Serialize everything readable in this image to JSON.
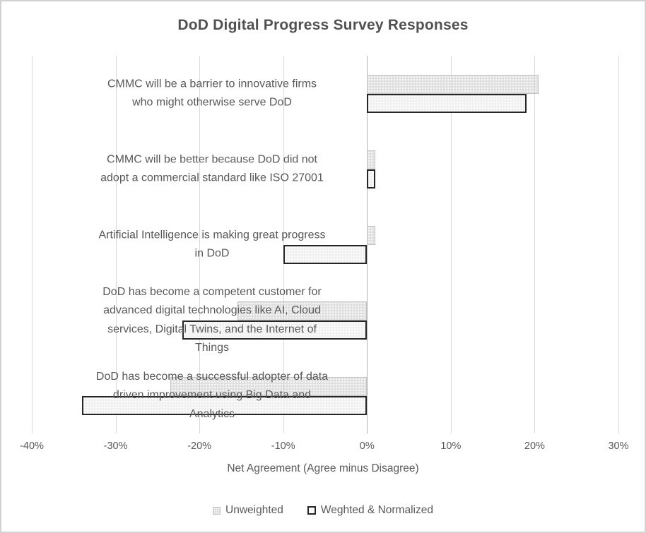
{
  "title": "DoD Digital Progress Survey Responses",
  "chart_data": {
    "type": "bar",
    "orientation": "horizontal",
    "title": "DoD Digital Progress Survey Responses",
    "xlabel": "Net Agreement (Agree minus Disagree)",
    "units": "%",
    "xlim": [
      -40,
      30
    ],
    "tick_step": 10,
    "tick_labels": [
      "-40%",
      "-30%",
      "-20%",
      "-10%",
      "0%",
      "10%",
      "20%",
      "30%"
    ],
    "grid": true,
    "legend_position": "bottom",
    "categories": [
      "CMMC will be a barrier to innovative firms\nwho might otherwise serve DoD",
      "CMMC will be better because DoD did not\nadopt a commercial standard like ISO 27001",
      "Artificial Intelligence is making great progress\nin DoD",
      "DoD has become a competent customer for\nadvanced digital technologies like AI, Cloud\nservices, Digital Twins, and the Internet of\nThings",
      "DoD has become a successful adopter of data\ndriven improvement using Big Data and\nAnalytics"
    ],
    "series": [
      {
        "name": "Unweighted",
        "values": [
          20.5,
          1,
          1,
          -15.5,
          -23.5
        ]
      },
      {
        "name": "Weghted & Normalized",
        "values": [
          19,
          1,
          -10,
          -22,
          -34
        ]
      }
    ]
  },
  "colors": {
    "unweighted_fill": "#d9d9d9",
    "unweighted_border": "#c3c3c3",
    "weighted_fill": "#f1f1f1",
    "weighted_border": "#262626",
    "gridline": "#d9d9d9",
    "zero_axis_line": "#b3b3b3",
    "text": "#595959",
    "title_text": "#515151",
    "background": "#ffffff"
  }
}
